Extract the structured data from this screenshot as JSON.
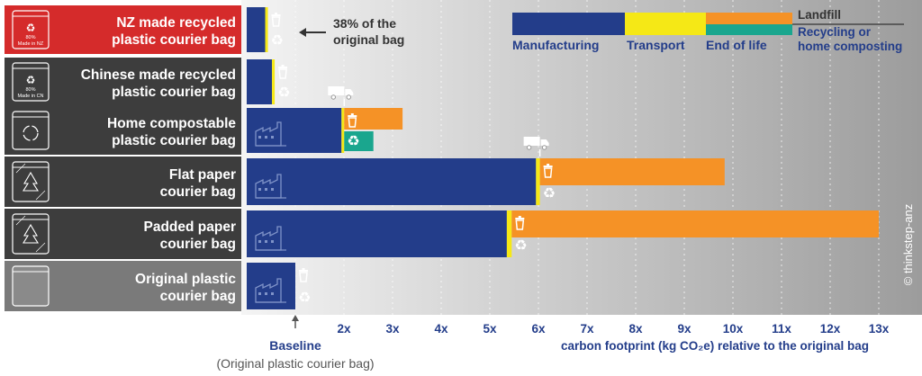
{
  "chart_data": {
    "type": "bar",
    "orientation": "horizontal",
    "stacked": true,
    "categories": [
      "NZ made recycled plastic courier bag",
      "Chinese made recycled plastic courier bag",
      "Home compostable plastic courier bag",
      "Flat paper courier bag",
      "Padded paper courier bag",
      "Original plastic courier bag"
    ],
    "category_lines": [
      [
        "NZ made recycled",
        "plastic courier bag"
      ],
      [
        "Chinese made recycled",
        "plastic courier bag"
      ],
      [
        "Home compostable",
        "plastic courier bag"
      ],
      [
        "Flat paper",
        "courier bag"
      ],
      [
        "Padded paper",
        "courier bag"
      ],
      [
        "Original plastic",
        "courier bag"
      ]
    ],
    "icon_labels": [
      {
        "pct": "80%",
        "origin": "Made in NZ"
      },
      {
        "pct": "80%",
        "origin": "Made in CN"
      }
    ],
    "series": [
      {
        "name": "Manufacturing",
        "color": "#233d8a",
        "values": [
          0.38,
          0.52,
          1.95,
          5.95,
          5.35,
          1.0
        ]
      },
      {
        "name": "Transport",
        "color": "#f5e816",
        "values": [
          0.02,
          0.03,
          0.05,
          0.08,
          0.1,
          0.0
        ]
      },
      {
        "name": "End of life - Landfill",
        "color": "#f59226",
        "values": [
          0.0,
          0.0,
          1.2,
          3.8,
          7.55,
          0.0
        ]
      },
      {
        "name": "End of life - Recycling or home composting",
        "color": "#1aa68e",
        "values": [
          0.0,
          0.0,
          0.6,
          0.0,
          0.0,
          0.0
        ]
      }
    ],
    "highlight_color": "#d52b2b",
    "annotation": {
      "text_lines": [
        "38% of the",
        "original bag"
      ]
    },
    "xticks": [
      "2x",
      "3x",
      "4x",
      "5x",
      "6x",
      "7x",
      "8x",
      "9x",
      "10x",
      "11x",
      "12x",
      "13x"
    ],
    "xtick_values": [
      2,
      3,
      4,
      5,
      6,
      7,
      8,
      9,
      10,
      11,
      12,
      13
    ],
    "xlim": [
      0,
      13.3
    ],
    "baseline_label": "Baseline",
    "baseline_sublabel": "(Original plastic courier bag)",
    "xlabel": "carbon footprint (kg CO₂e) relative to the original bag",
    "legend": {
      "manufacturing": "Manufacturing",
      "transport": "Transport",
      "end_of_life": "End of life",
      "landfill": "Landfill",
      "recycling_lines": [
        "Recycling or",
        "home composting"
      ]
    },
    "credit": "© thinkstep-anz"
  }
}
